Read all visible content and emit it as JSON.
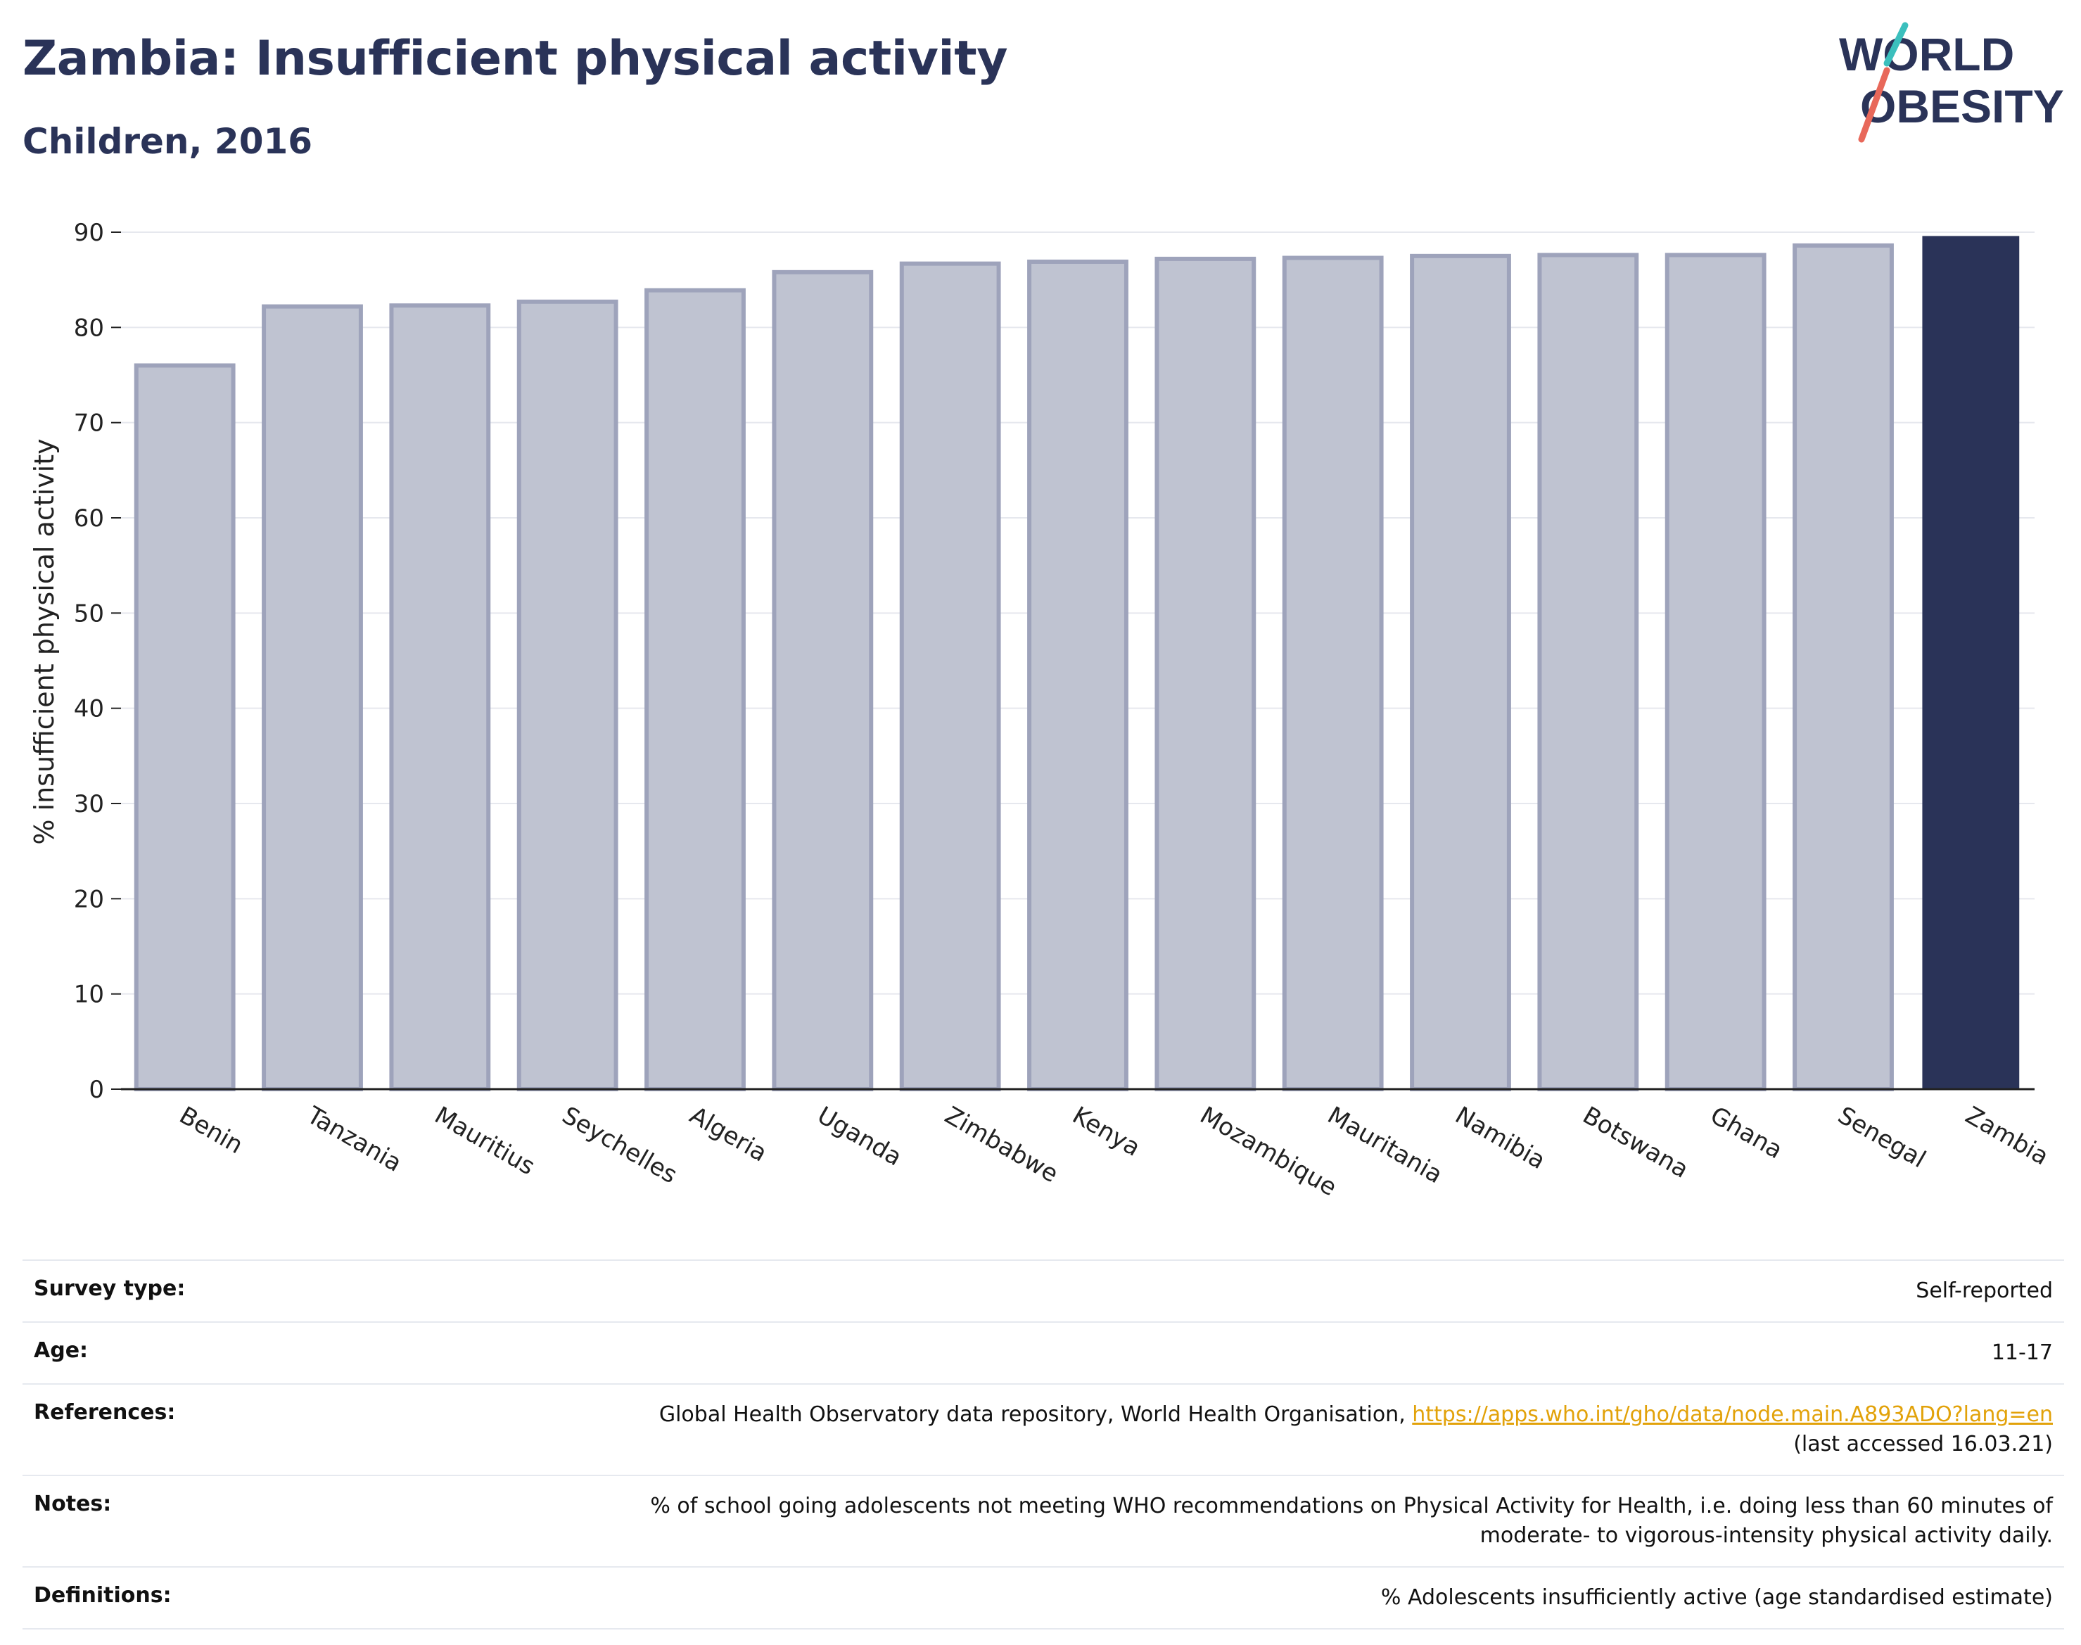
{
  "header": {
    "title": "Zambia: Insufficient physical activity",
    "subtitle": "Children, 2016"
  },
  "logo": {
    "line1": "WORLD",
    "line2": "OBESITY",
    "colors": {
      "text": "#2a3358",
      "slash_top": "#3bbfbd",
      "slash_bottom": "#e8685a"
    }
  },
  "chart_data": {
    "type": "bar",
    "categories": [
      "Benin",
      "Tanzania",
      "Mauritius",
      "Seychelles",
      "Algeria",
      "Uganda",
      "Zimbabwe",
      "Kenya",
      "Mozambique",
      "Mauritania",
      "Namibia",
      "Botswana",
      "Ghana",
      "Senegal",
      "Zambia"
    ],
    "values": [
      76.0,
      82.2,
      82.3,
      82.7,
      83.9,
      85.8,
      86.7,
      86.9,
      87.2,
      87.3,
      87.5,
      87.6,
      87.6,
      88.6,
      89.6
    ],
    "highlight": "Zambia",
    "xlabel": "",
    "ylabel": "% insufficient physical activity",
    "ylim": [
      0,
      90
    ],
    "yticks": [
      0,
      10,
      20,
      30,
      40,
      50,
      60,
      70,
      80,
      90
    ],
    "grid": true,
    "legend": "none",
    "colors": {
      "bar": "#bfc3d1",
      "bar_edge": "#9ea3bb",
      "highlight": "#2a3358",
      "grid": "#e6e8ee",
      "axis": "#222222"
    }
  },
  "info": {
    "rows": [
      {
        "label": "Survey type:",
        "value": "Self-reported"
      },
      {
        "label": "Age:",
        "value": "11-17"
      },
      {
        "label": "References:",
        "value": "Global Health Observatory data repository, World Health Organisation, ",
        "link": "https://apps.who.int/gho/data/node.main.A893ADO?lang=en",
        "value2": "(last accessed 16.03.21)"
      },
      {
        "label": "Notes:",
        "value": "% of school going adolescents not meeting WHO recommendations on Physical Activity for Health, i.e. doing less than 60 minutes of",
        "value2": "moderate- to vigorous-intensity physical activity daily."
      },
      {
        "label": "Definitions:",
        "value": "% Adolescents insufficiently active (age standardised estimate)"
      }
    ]
  }
}
